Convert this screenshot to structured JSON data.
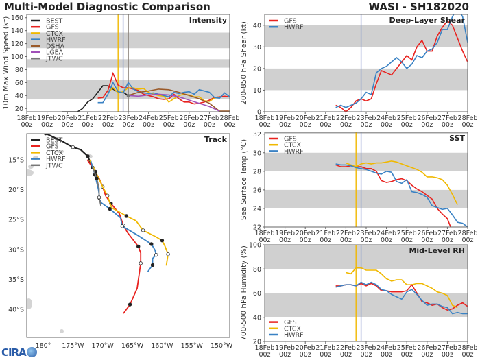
{
  "header": {
    "title": "Multi-Model Diagnostic Comparison",
    "storm": "WASI - SH182020"
  },
  "logo": "CIRA",
  "time_ticks": [
    {
      "date": "18Feb",
      "time": "00z"
    },
    {
      "date": "19Feb",
      "time": "00z"
    },
    {
      "date": "20Feb",
      "time": "00z"
    },
    {
      "date": "21Feb",
      "time": "00z"
    },
    {
      "date": "22Feb",
      "time": "00z"
    },
    {
      "date": "23Feb",
      "time": "00z"
    },
    {
      "date": "24Feb",
      "time": "00z"
    },
    {
      "date": "25Feb",
      "time": "00z"
    },
    {
      "date": "26Feb",
      "time": "00z"
    },
    {
      "date": "27Feb",
      "time": "00z"
    },
    {
      "date": "28Feb",
      "time": "00z"
    }
  ],
  "chart_data": [
    {
      "id": "intensity",
      "type": "line",
      "title": "Intensity",
      "ylabel": "10m Max Wind Speed (kt)",
      "xlim": [
        "18Feb 00z",
        "28Feb 00z"
      ],
      "ylim": [
        15,
        165
      ],
      "yticks": [
        20,
        40,
        60,
        80,
        100,
        120,
        140,
        160
      ],
      "bands": [
        [
          34,
          64
        ],
        [
          83,
          96
        ],
        [
          113,
          137
        ]
      ],
      "legend": "top-left",
      "vlines": [
        {
          "model": "CTCX",
          "time": "22Feb 12z",
          "color": "#f0b800"
        },
        {
          "model": "HWRF",
          "time": "22Feb 18z",
          "color": "#8899cc"
        },
        {
          "model": "DSHA",
          "time": "23Feb 00z",
          "color": "#9a5a2a"
        },
        {
          "model": "JTWC",
          "time": "23Feb 00z",
          "color": "#888888"
        }
      ],
      "series": [
        {
          "name": "BEST",
          "color": "#222222",
          "t0": "19Feb 18z",
          "step_h": 6,
          "values": [
            15,
            15,
            15,
            15,
            20,
            30,
            35,
            45,
            55,
            55,
            50,
            45,
            45,
            40
          ]
        },
        {
          "name": "GFS",
          "color": "#e8221f",
          "t0": "21Feb 12z",
          "step_h": 6,
          "values": [
            36,
            37,
            48,
            74,
            56,
            52,
            52,
            50,
            48,
            42,
            40,
            38,
            35,
            34,
            35,
            42,
            35,
            30,
            30,
            27,
            28,
            30,
            33,
            37,
            38,
            39,
            38
          ]
        },
        {
          "name": "CTCX",
          "color": "#f0b800",
          "t0": "22Feb 00z",
          "step_h": 6,
          "values": [
            45,
            52,
            44,
            46,
            52,
            52,
            50,
            51,
            45,
            42,
            40,
            39,
            30,
            35,
            40,
            42,
            41,
            38,
            38,
            32,
            31,
            36,
            38
          ]
        },
        {
          "name": "HWRF",
          "color": "#3a82c4",
          "t0": "21Feb 12z",
          "step_h": 6,
          "values": [
            29,
            29,
            42,
            60,
            46,
            44,
            60,
            50,
            46,
            44,
            43,
            44,
            42,
            40,
            38,
            45,
            43,
            45,
            46,
            42,
            49,
            47,
            45,
            37,
            36,
            44,
            38
          ]
        },
        {
          "name": "DSHA",
          "color": "#9a5a2a",
          "t0": "23Feb 00z",
          "step_h": 12,
          "values": [
            40,
            45,
            47,
            50,
            49,
            45,
            40,
            35,
            28,
            16,
            16
          ]
        },
        {
          "name": "LGEA",
          "color": "#a050b8",
          "t0": "23Feb 00z",
          "step_h": 12,
          "values": [
            40,
            39,
            41,
            42,
            41,
            38,
            33,
            28,
            23,
            16
          ]
        },
        {
          "name": "JTWC",
          "color": "#777777",
          "t0": "23Feb 00z",
          "step_h": 6,
          "values": [
            40
          ]
        }
      ]
    },
    {
      "id": "shear",
      "type": "line",
      "title": "Deep-Layer Shear",
      "ylabel": "200-850 hPa Shear (kt)",
      "xlim": [
        "18Feb 00z",
        "28Feb 00z"
      ],
      "ylim": [
        0,
        45
      ],
      "yticks": [
        0,
        10,
        20,
        30,
        40
      ],
      "bands": [
        [
          10,
          20
        ],
        [
          30,
          40
        ]
      ],
      "legend": "top-left",
      "vlines": [
        {
          "model": "HWRF",
          "time": "22Feb 18z",
          "color": "#8899cc"
        }
      ],
      "series": [
        {
          "name": "GFS",
          "color": "#e8221f",
          "t0": "21Feb 12z",
          "step_h": 6,
          "values": [
            3,
            2,
            0,
            2,
            5,
            6,
            5,
            6,
            13,
            19,
            18,
            17,
            20,
            23,
            26,
            24,
            30,
            33,
            28,
            28,
            35,
            39,
            42,
            40,
            34,
            28,
            23
          ]
        },
        {
          "name": "HWRF",
          "color": "#3a82c4",
          "t0": "21Feb 12z",
          "step_h": 6,
          "values": [
            2,
            3,
            2,
            3,
            4,
            6,
            9,
            8,
            18,
            20,
            21,
            23,
            25,
            23,
            20,
            22,
            26,
            25,
            28,
            29,
            32,
            38,
            38,
            44,
            48,
            44,
            32
          ]
        }
      ]
    },
    {
      "id": "sst",
      "type": "line",
      "title": "SST",
      "ylabel": "Sea Surface Temp (°C)",
      "xlim": [
        "18Feb 00z",
        "28Feb 00z"
      ],
      "ylim": [
        22,
        32.2
      ],
      "yticks": [
        22,
        24,
        26,
        28,
        30,
        32
      ],
      "bands": [
        [
          24,
          26
        ],
        [
          28,
          30
        ],
        [
          32,
          33
        ]
      ],
      "legend": "top-left",
      "vlines": [
        {
          "model": "CTCX",
          "time": "22Feb 12z",
          "color": "#f0b800"
        },
        {
          "model": "HWRF",
          "time": "22Feb 18z",
          "color": "#8899cc"
        }
      ],
      "series": [
        {
          "name": "GFS",
          "color": "#e8221f",
          "t0": "21Feb 12z",
          "step_h": 6,
          "values": [
            28.7,
            28.5,
            28.5,
            28.6,
            28.5,
            28.5,
            28.3,
            28.3,
            28.0,
            27.0,
            26.8,
            26.9,
            27.1,
            27.2,
            27.0,
            26.5,
            26.1,
            25.8,
            25.4,
            25.0,
            24.0,
            23.4,
            22.9,
            21.5
          ]
        },
        {
          "name": "CTCX",
          "color": "#f0b800",
          "t0": "22Feb 00z",
          "step_h": 6,
          "values": [
            28.9,
            28.7,
            28.5,
            28.8,
            28.9,
            28.8,
            28.9,
            28.9,
            29.0,
            29.1,
            29.0,
            28.8,
            28.6,
            28.4,
            28.2,
            27.9,
            27.4,
            27.4,
            27.3,
            27.1,
            26.5,
            25.5,
            24.4
          ]
        },
        {
          "name": "HWRF",
          "color": "#3a82c4",
          "t0": "21Feb 12z",
          "step_h": 6,
          "values": [
            28.8,
            28.7,
            28.7,
            28.6,
            28.4,
            28.3,
            28.2,
            28.0,
            27.8,
            27.7,
            28.0,
            27.9,
            26.9,
            26.7,
            27.1,
            25.8,
            25.7,
            25.5,
            25.2,
            24.3,
            24.1,
            23.9,
            24.0,
            23.3,
            22.5,
            22.4,
            22.0
          ]
        }
      ]
    },
    {
      "id": "rh",
      "type": "line",
      "title": "Mid-Level RH",
      "ylabel": "700-500 hPa Humidity (%)",
      "xlim": [
        "18Feb 00z",
        "28Feb 00z"
      ],
      "ylim": [
        20,
        100
      ],
      "yticks": [
        20,
        40,
        60,
        80,
        100
      ],
      "bands": [
        [
          40,
          60
        ],
        [
          80,
          100
        ]
      ],
      "legend": "bottom-left",
      "vlines": [
        {
          "model": "CTCX",
          "time": "22Feb 12z",
          "color": "#f0b800"
        },
        {
          "model": "HWRF",
          "time": "22Feb 18z",
          "color": "#8899cc"
        }
      ],
      "series": [
        {
          "name": "GFS",
          "color": "#e8221f",
          "t0": "21Feb 12z",
          "step_h": 6,
          "values": [
            66,
            66,
            67,
            67,
            66,
            68,
            66,
            68,
            66,
            62,
            62,
            61,
            61,
            61,
            62,
            67,
            60,
            53,
            52,
            50,
            51,
            48,
            46,
            47,
            50,
            52,
            49
          ]
        },
        {
          "name": "CTCX",
          "color": "#f0b800",
          "t0": "22Feb 00z",
          "step_h": 6,
          "values": [
            77,
            76,
            81,
            81,
            79,
            79,
            79,
            76,
            72,
            70,
            71,
            71,
            67,
            67,
            68,
            68,
            66,
            64,
            61,
            60,
            58,
            50,
            48
          ]
        },
        {
          "name": "HWRF",
          "color": "#3a82c4",
          "t0": "21Feb 12z",
          "step_h": 6,
          "values": [
            65,
            66,
            67,
            67,
            66,
            69,
            67,
            69,
            67,
            63,
            62,
            59,
            57,
            55,
            61,
            63,
            59,
            54,
            50,
            51,
            51,
            49,
            48,
            43,
            44,
            43,
            43
          ]
        }
      ]
    },
    {
      "id": "track",
      "type": "line",
      "title": "Track",
      "legend": "top-left",
      "xticks": [
        {
          "lon": -180,
          "label": "180°"
        },
        {
          "lon": -175,
          "label": "175°W"
        },
        {
          "lon": -170,
          "label": "170°W"
        },
        {
          "lon": -165,
          "label": "165°W"
        },
        {
          "lon": -160,
          "label": "160°W"
        },
        {
          "lon": -155,
          "label": "155°W"
        },
        {
          "lon": -150,
          "label": "150°W"
        }
      ],
      "yticks": [
        {
          "lat": -15,
          "label": "15°S"
        },
        {
          "lat": -20,
          "label": "20°S"
        },
        {
          "lat": -25,
          "label": "25°S"
        },
        {
          "lat": -30,
          "label": "30°S"
        },
        {
          "lat": -35,
          "label": "35°S"
        },
        {
          "lat": -40,
          "label": "40°S"
        }
      ],
      "series": [
        {
          "name": "BEST",
          "color": "#222222",
          "points": [
            [
              -10.0,
              -180.2
            ],
            [
              -10.6,
              -179.6
            ],
            [
              -11.8,
              -177.0
            ],
            [
              -12.9,
              -175.0
            ],
            [
              -13.3,
              -173.7
            ],
            [
              -14.4,
              -172.5
            ],
            [
              -15.4,
              -172.1
            ],
            [
              -16.3,
              -171.7
            ]
          ]
        },
        {
          "name": "GFS",
          "color": "#e8221f",
          "points": [
            [
              -15.0,
              -172.6
            ],
            [
              -16.3,
              -171.7
            ],
            [
              -18.1,
              -170.6
            ],
            [
              -19.5,
              -170.0
            ],
            [
              -21.0,
              -169.5
            ],
            [
              -22.3,
              -168.6
            ],
            [
              -24.0,
              -167.2
            ],
            [
              -26.0,
              -166.5
            ],
            [
              -27.2,
              -165.8
            ],
            [
              -29.5,
              -164.0
            ],
            [
              -30.6,
              -163.6
            ],
            [
              -32.3,
              -163.6
            ],
            [
              -36.5,
              -164.2
            ],
            [
              -39.2,
              -165.4
            ],
            [
              -40.7,
              -166.5
            ]
          ]
        },
        {
          "name": "CTCX",
          "color": "#f0b800",
          "points": [
            [
              -15.0,
              -172.2
            ],
            [
              -17.0,
              -171.2
            ],
            [
              -19.5,
              -170.0
            ],
            [
              -21.0,
              -169.2
            ],
            [
              -23.0,
              -168.5
            ],
            [
              -24.4,
              -166.0
            ],
            [
              -25.2,
              -164.4
            ],
            [
              -26.8,
              -163.2
            ],
            [
              -27.9,
              -161.0
            ],
            [
              -28.5,
              -160.0
            ],
            [
              -29.5,
              -159.5
            ],
            [
              -30.8,
              -159.0
            ],
            [
              -32.7,
              -159.3
            ]
          ]
        },
        {
          "name": "HWRF",
          "color": "#3a82c4",
          "points": [
            [
              -15.2,
              -172.0
            ],
            [
              -17.5,
              -171.3
            ],
            [
              -20.0,
              -170.7
            ],
            [
              -21.5,
              -170.5
            ],
            [
              -22.2,
              -170.2
            ],
            [
              -23.2,
              -168.8
            ],
            [
              -24.7,
              -167.0
            ],
            [
              -26.1,
              -166.7
            ],
            [
              -27.7,
              -164.0
            ],
            [
              -29.1,
              -161.8
            ],
            [
              -30.1,
              -161.2
            ],
            [
              -30.9,
              -161.0
            ],
            [
              -31.5,
              -161.6
            ],
            [
              -32.6,
              -161.6
            ],
            [
              -33.7,
              -162.4
            ]
          ]
        },
        {
          "name": "JTWC",
          "color": "#777777",
          "points": [
            [
              -16.3,
              -171.7
            ],
            [
              -18.1,
              -171.0
            ],
            [
              -19.8,
              -170.6
            ],
            [
              -21.3,
              -170.6
            ],
            [
              -22.7,
              -170.3
            ]
          ]
        }
      ]
    }
  ]
}
